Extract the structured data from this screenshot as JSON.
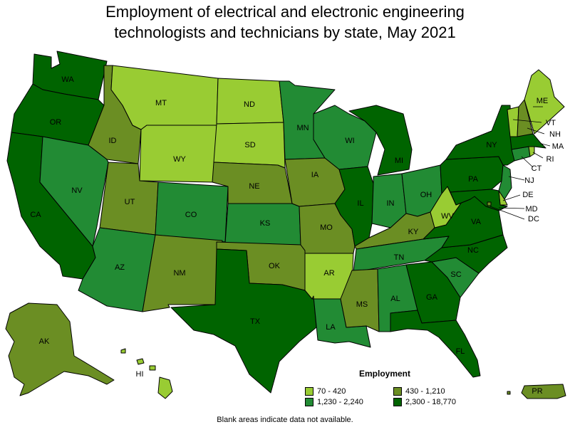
{
  "title_line1": "Employment of electrical and electronic engineering",
  "title_line2": "technologists and technicians by state, May 2021",
  "legend": {
    "title": "Employment",
    "items": [
      {
        "label": "70 - 420",
        "color": "#99cc33"
      },
      {
        "label": "430 - 1,210",
        "color": "#6b8e23"
      },
      {
        "label": "1,230 - 2,240",
        "color": "#228b34"
      },
      {
        "label": "2,300 - 18,770",
        "color": "#006400"
      }
    ]
  },
  "footnote": "Blank areas indicate data not available.",
  "states": [
    {
      "abbr": "WA",
      "bin": 3
    },
    {
      "abbr": "OR",
      "bin": 3
    },
    {
      "abbr": "CA",
      "bin": 3
    },
    {
      "abbr": "ID",
      "bin": 1
    },
    {
      "abbr": "NV",
      "bin": 2
    },
    {
      "abbr": "MT",
      "bin": 0
    },
    {
      "abbr": "WY",
      "bin": 0
    },
    {
      "abbr": "UT",
      "bin": 1
    },
    {
      "abbr": "AZ",
      "bin": 2
    },
    {
      "abbr": "CO",
      "bin": 2
    },
    {
      "abbr": "NM",
      "bin": 1
    },
    {
      "abbr": "ND",
      "bin": 0
    },
    {
      "abbr": "SD",
      "bin": 0
    },
    {
      "abbr": "NE",
      "bin": 1
    },
    {
      "abbr": "KS",
      "bin": 2
    },
    {
      "abbr": "OK",
      "bin": 1
    },
    {
      "abbr": "TX",
      "bin": 3
    },
    {
      "abbr": "MN",
      "bin": 2
    },
    {
      "abbr": "IA",
      "bin": 1
    },
    {
      "abbr": "MO",
      "bin": 1
    },
    {
      "abbr": "AR",
      "bin": 0
    },
    {
      "abbr": "LA",
      "bin": 2
    },
    {
      "abbr": "WI",
      "bin": 2
    },
    {
      "abbr": "IL",
      "bin": 3
    },
    {
      "abbr": "MI",
      "bin": 3
    },
    {
      "abbr": "IN",
      "bin": 2
    },
    {
      "abbr": "OH",
      "bin": 2
    },
    {
      "abbr": "KY",
      "bin": 1
    },
    {
      "abbr": "TN",
      "bin": 2
    },
    {
      "abbr": "MS",
      "bin": 1
    },
    {
      "abbr": "AL",
      "bin": 2
    },
    {
      "abbr": "GA",
      "bin": 3
    },
    {
      "abbr": "FL",
      "bin": 3
    },
    {
      "abbr": "SC",
      "bin": 2
    },
    {
      "abbr": "NC",
      "bin": 3
    },
    {
      "abbr": "VA",
      "bin": 3
    },
    {
      "abbr": "WV",
      "bin": 0
    },
    {
      "abbr": "PA",
      "bin": 3
    },
    {
      "abbr": "NY",
      "bin": 3
    },
    {
      "abbr": "NJ",
      "bin": 2
    },
    {
      "abbr": "DE",
      "bin": 0
    },
    {
      "abbr": "MD",
      "bin": 3
    },
    {
      "abbr": "DC",
      "bin": 1
    },
    {
      "abbr": "CT",
      "bin": 2
    },
    {
      "abbr": "RI",
      "bin": 0
    },
    {
      "abbr": "MA",
      "bin": 3
    },
    {
      "abbr": "VT",
      "bin": 0
    },
    {
      "abbr": "NH",
      "bin": 1
    },
    {
      "abbr": "ME",
      "bin": 0
    },
    {
      "abbr": "AK",
      "bin": 1
    },
    {
      "abbr": "HI",
      "bin": 0
    },
    {
      "abbr": "PR",
      "bin": 1
    }
  ]
}
